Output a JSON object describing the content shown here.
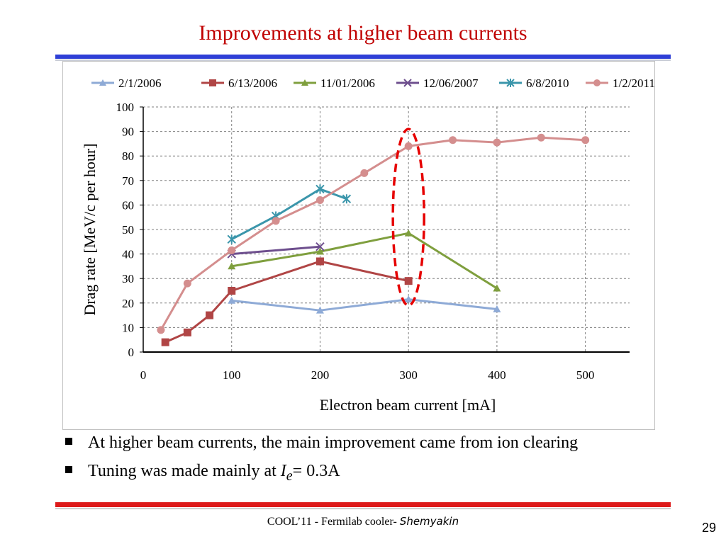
{
  "slide": {
    "title": "Improvements at higher beam currents",
    "bullets": [
      {
        "text": "At higher beam currents, the main improvement came from ion clearing"
      },
      {
        "prefix": "Tuning was made mainly at ",
        "var": "I",
        "sub": "e",
        "suffix": "= 0.3A"
      }
    ],
    "footer_text": "COOL’11 - Fermilab cooler",
    "footer_dash": "- ",
    "footer_author": "Shemyakin",
    "page_number": "29",
    "colors": {
      "title": "#c00000",
      "top_bar": "#2e3fd6",
      "bottom_bar": "#dd1a1a"
    }
  },
  "chart_data": {
    "type": "line",
    "xlabel": "Electron beam current [mA]",
    "ylabel": "Drag rate [MeV/c per hour]",
    "xlim": [
      0,
      550
    ],
    "ylim": [
      0,
      100
    ],
    "xticks": [
      0,
      100,
      200,
      300,
      400,
      500
    ],
    "yticks": [
      0,
      10,
      20,
      30,
      40,
      50,
      60,
      70,
      80,
      90,
      100
    ],
    "grid": true,
    "legend_position": "top",
    "annotation": {
      "type": "dashed-ellipse",
      "color": "#e60000",
      "cx": 300,
      "cy": 55,
      "rx": 22,
      "ry": 36
    },
    "series": [
      {
        "name": "2/1/2006",
        "color": "#8eaad6",
        "marker": "triangle",
        "x": [
          100,
          200,
          300,
          400
        ],
        "y": [
          21,
          17,
          21.5,
          17.5
        ]
      },
      {
        "name": "6/13/2006",
        "color": "#b04545",
        "marker": "square",
        "x": [
          25,
          50,
          75,
          100,
          200,
          300
        ],
        "y": [
          4,
          8,
          15,
          25,
          37,
          29
        ]
      },
      {
        "name": "11/01/2006",
        "color": "#7f9f3e",
        "marker": "triangle",
        "x": [
          100,
          200,
          300,
          400
        ],
        "y": [
          35,
          41,
          48.5,
          26
        ]
      },
      {
        "name": "12/06/2007",
        "color": "#6e4f8e",
        "marker": "x",
        "x": [
          100,
          200
        ],
        "y": [
          40,
          43
        ]
      },
      {
        "name": "6/8/2010",
        "color": "#3b96ab",
        "marker": "star",
        "x": [
          100,
          150,
          200,
          230
        ],
        "y": [
          46,
          55.5,
          66.5,
          62.5
        ]
      },
      {
        "name": "1/2/2011",
        "color": "#d48e8e",
        "marker": "circle",
        "x": [
          20,
          50,
          100,
          150,
          200,
          250,
          300,
          350,
          400,
          450,
          500
        ],
        "y": [
          9,
          28,
          41.5,
          53.5,
          62,
          73,
          84,
          86.5,
          85.5,
          87.5,
          86.5
        ]
      }
    ]
  }
}
